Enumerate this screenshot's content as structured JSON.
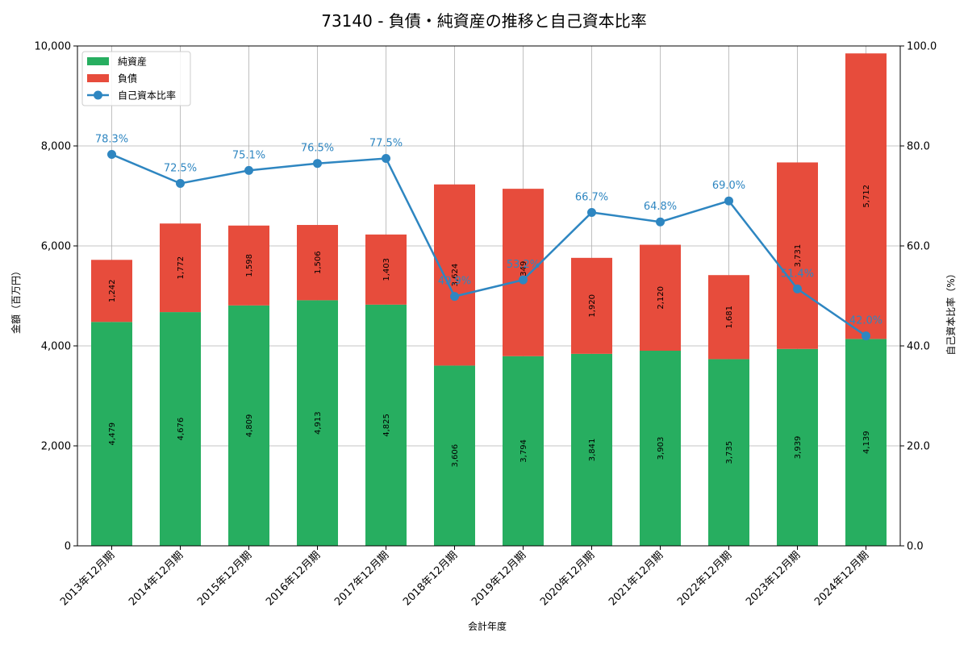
{
  "chart_data": {
    "type": "bar",
    "title": "73140 - 負債・純資産の推移と自己資本比率",
    "xlabel": "会計年度",
    "ylabel": "金額（百万円）",
    "y2label": "自己資本比率（%）",
    "ylim": [
      0,
      10000
    ],
    "y2lim": [
      0,
      100
    ],
    "yticks": [
      "0",
      "2,000",
      "4,000",
      "6,000",
      "8,000",
      "10,000"
    ],
    "y2ticks": [
      "0.0",
      "20.0",
      "40.0",
      "60.0",
      "80.0",
      "100.0"
    ],
    "grid": true,
    "legend_position": "top-left",
    "categories": [
      "2013年12月期",
      "2014年12月期",
      "2015年12月期",
      "2016年12月期",
      "2017年12月期",
      "2018年12月期",
      "2019年12月期",
      "2020年12月期",
      "2021年12月期",
      "2022年12月期",
      "2023年12月期",
      "2024年12月期"
    ],
    "series": [
      {
        "name": "純資産",
        "type": "bar",
        "color": "#27ae60",
        "values": [
          4479,
          4676,
          4809,
          4913,
          4825,
          3606,
          3794,
          3841,
          3903,
          3735,
          3939,
          4139
        ],
        "labels": [
          "4,479",
          "4,676",
          "4,809",
          "4,913",
          "4,825",
          "3,606",
          "3,794",
          "3,841",
          "3,903",
          "3,735",
          "3,939",
          "4,139"
        ]
      },
      {
        "name": "負債",
        "type": "bar",
        "color": "#e74c3c",
        "values": [
          1242,
          1772,
          1598,
          1506,
          1403,
          3624,
          3349,
          1920,
          2120,
          1681,
          3731,
          5712
        ],
        "labels": [
          "1,242",
          "1,772",
          "1,598",
          "1,506",
          "1,403",
          "3,624",
          "3,349",
          "1,920",
          "2,120",
          "1,681",
          "3,731",
          "5,712"
        ]
      },
      {
        "name": "自己資本比率",
        "type": "line",
        "color": "#2e86c1",
        "values": [
          78.3,
          72.5,
          75.1,
          76.5,
          77.5,
          49.9,
          53.2,
          66.7,
          64.8,
          69.0,
          51.4,
          42.0
        ],
        "labels": [
          "78.3%",
          "72.5%",
          "75.1%",
          "76.5%",
          "77.5%",
          "49.9%",
          "53.2%",
          "66.7%",
          "64.8%",
          "69.0%",
          "51.4%",
          "42.0%"
        ]
      }
    ]
  }
}
